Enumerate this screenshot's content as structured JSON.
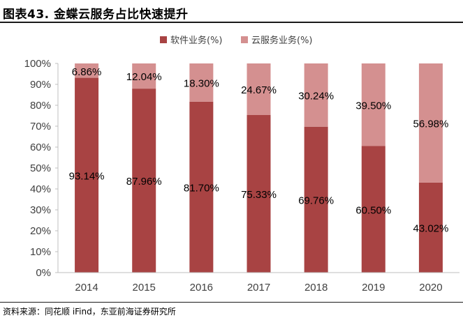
{
  "title": "图表43. 金蝶云服务占比快速提升",
  "footer": "资料来源：同花顺 iFind，东亚前海证券研究所",
  "colors": {
    "software": "#a84343",
    "cloud": "#d49090"
  },
  "chart_data": {
    "type": "bar",
    "stacked": true,
    "categories": [
      "2014",
      "2015",
      "2016",
      "2017",
      "2018",
      "2019",
      "2020"
    ],
    "series": [
      {
        "name": "软件业务(%)",
        "values": [
          93.14,
          87.96,
          81.7,
          75.33,
          69.76,
          60.5,
          43.02
        ],
        "labels": [
          "93.14%",
          "87.96%",
          "81.70%",
          "75.33%",
          "69.76%",
          "60.50%",
          "43.02%"
        ]
      },
      {
        "name": "云服务业务(%)",
        "values": [
          6.86,
          12.04,
          18.3,
          24.67,
          30.24,
          39.5,
          56.98
        ],
        "labels": [
          "6.86%",
          "12.04%",
          "18.30%",
          "24.67%",
          "30.24%",
          "39.50%",
          "56.98%"
        ]
      }
    ],
    "yticks": [
      "0%",
      "10%",
      "20%",
      "30%",
      "40%",
      "50%",
      "60%",
      "70%",
      "80%",
      "90%",
      "100%"
    ],
    "ylim": [
      0,
      100
    ],
    "legend": "top-center"
  }
}
